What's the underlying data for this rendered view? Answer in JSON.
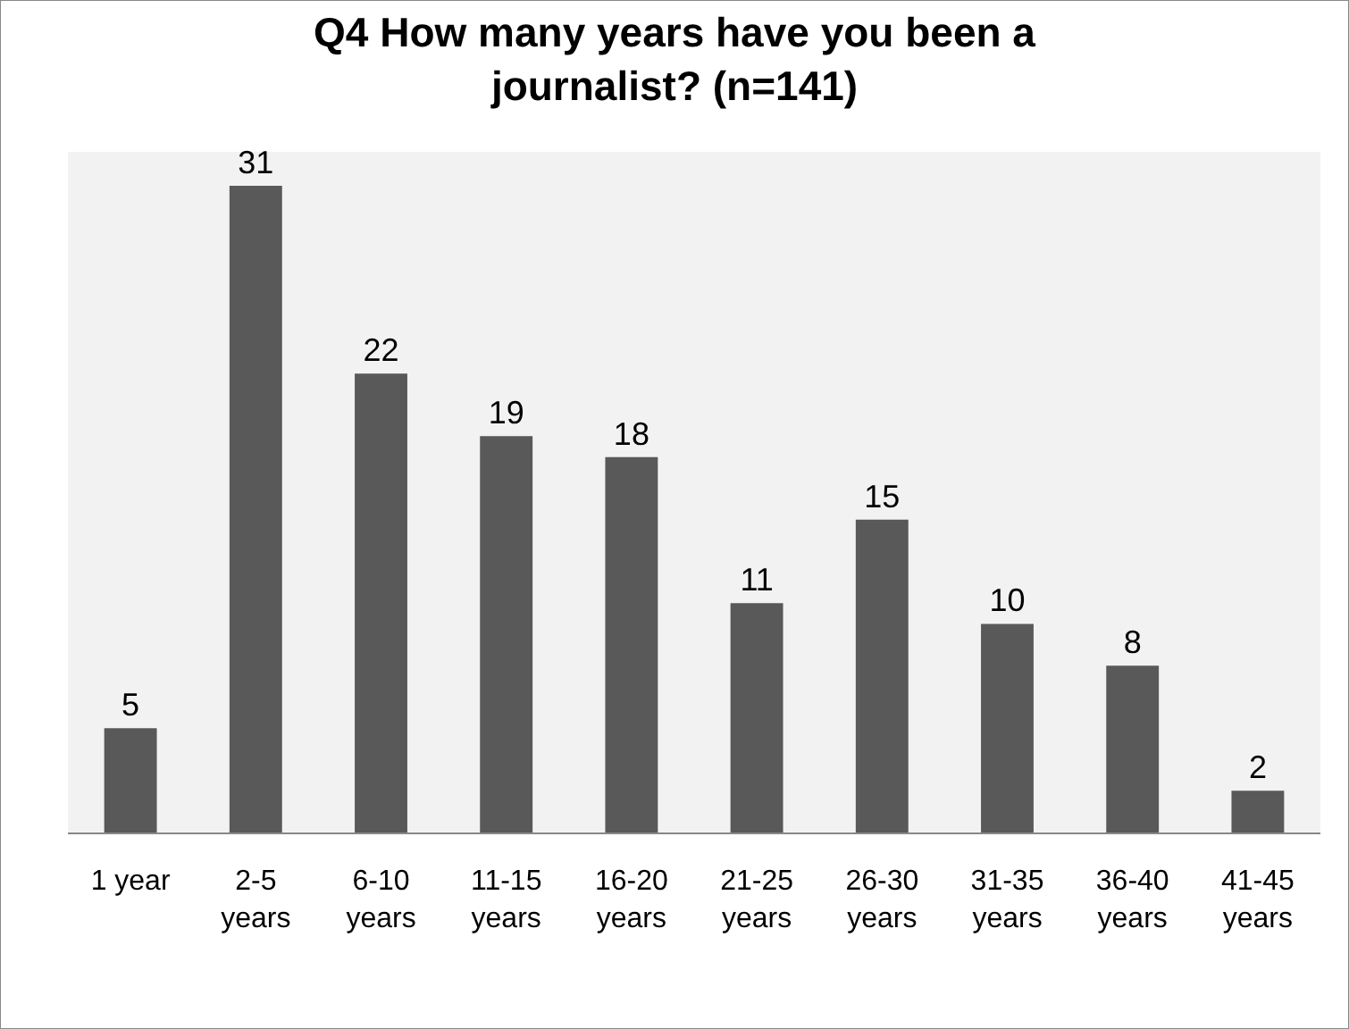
{
  "chart_data": {
    "type": "bar",
    "title": "Q4 How many years have you been a journalist? (n=141)",
    "categories": [
      "1 year",
      "2-5 years",
      "6-10 years",
      "11-15 years",
      "16-20 years",
      "21-25 years",
      "26-30 years",
      "31-35 years",
      "36-40 years",
      "41-45 years"
    ],
    "values": [
      5,
      31,
      22,
      19,
      18,
      11,
      15,
      10,
      8,
      2
    ],
    "color": "#595959",
    "data_labels": true,
    "grid": false,
    "legend": false
  }
}
